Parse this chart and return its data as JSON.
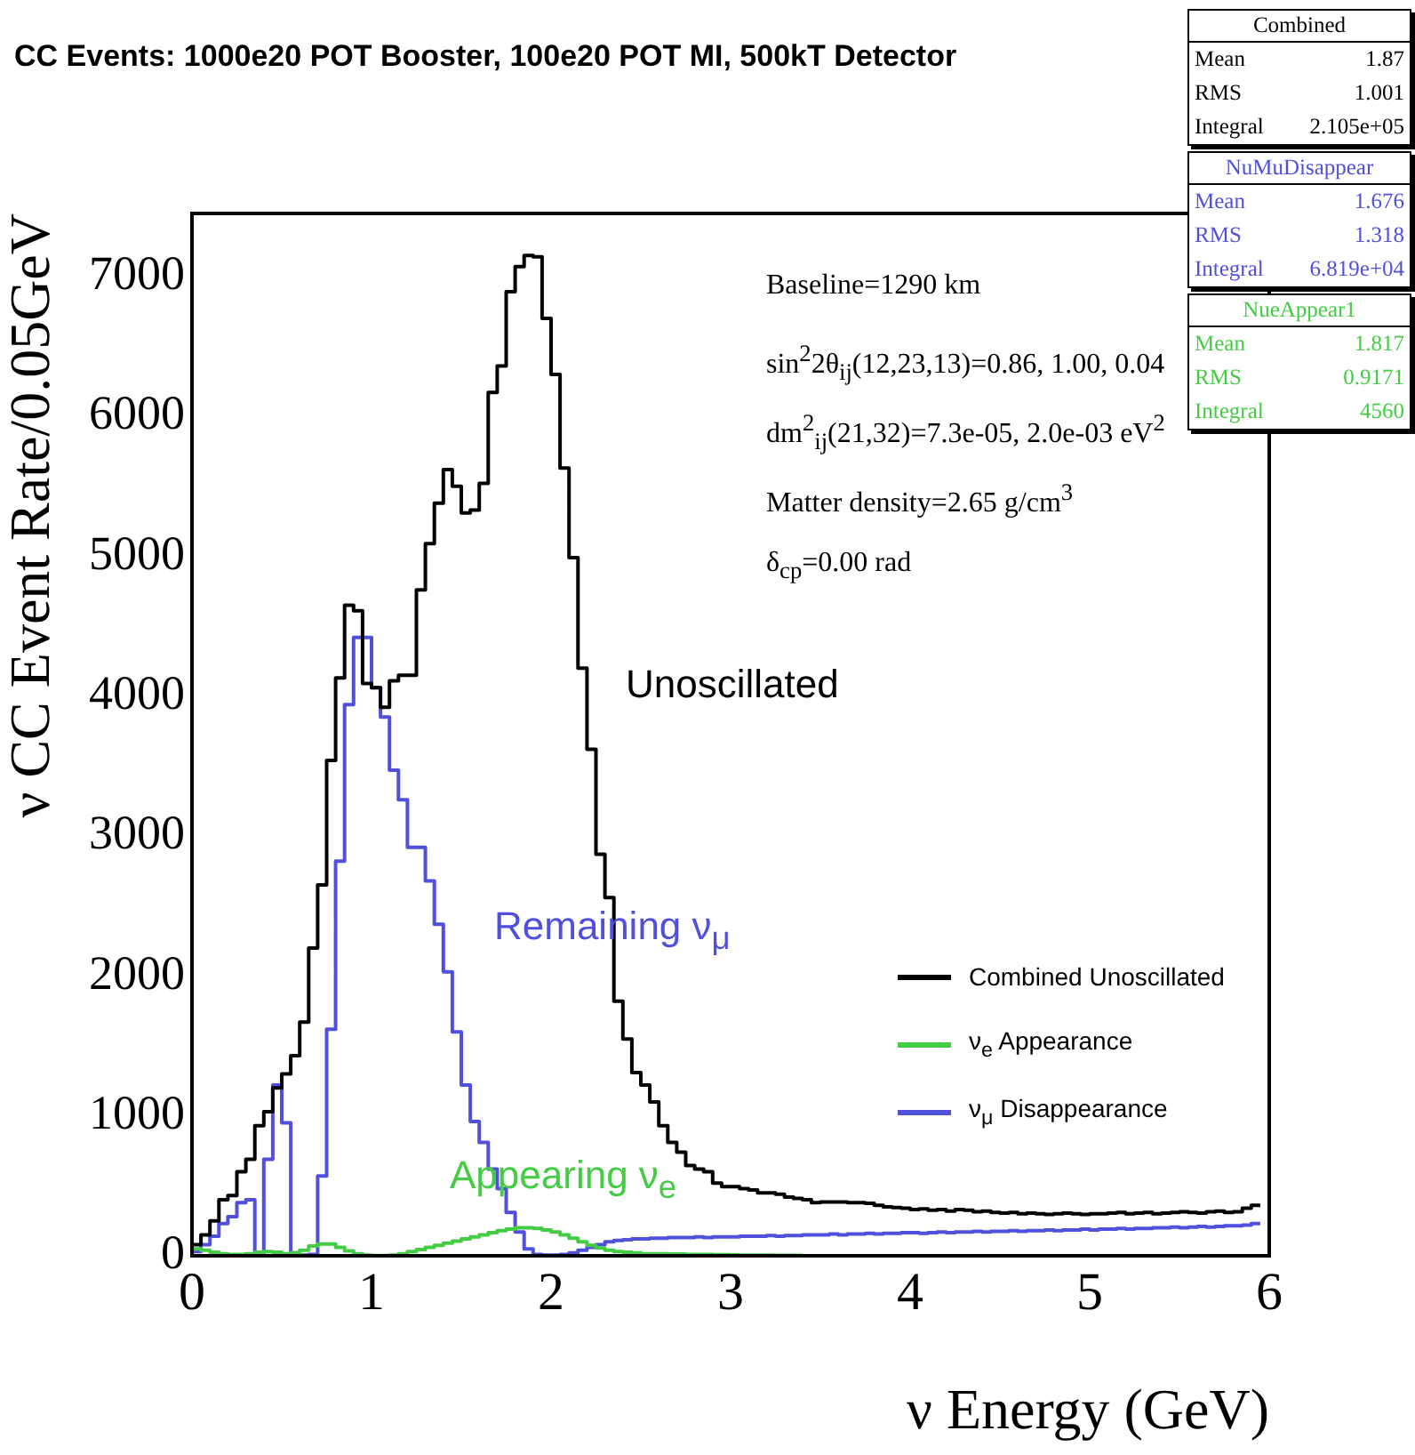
{
  "chart_data": {
    "type": "step",
    "title": "CC Events: 1000e20 POT Booster, 100e20 POT MI, 500kT Detector",
    "xlabel": "ν Energy (GeV)",
    "ylabel": "ν CC Event Rate/0.05GeV",
    "x": [
      0,
      0.05,
      0.1,
      0.15,
      0.2,
      0.25,
      0.3,
      0.35,
      0.4,
      0.45,
      0.5,
      0.55,
      0.6,
      0.65,
      0.7,
      0.75,
      0.8,
      0.85,
      0.9,
      0.95,
      1,
      1.05,
      1.1,
      1.15,
      1.2,
      1.25,
      1.3,
      1.35,
      1.4,
      1.45,
      1.5,
      1.55,
      1.6,
      1.65,
      1.7,
      1.75,
      1.8,
      1.85,
      1.9,
      1.95,
      2,
      2.05,
      2.1,
      2.15,
      2.2,
      2.25,
      2.3,
      2.35,
      2.4,
      2.45,
      2.5,
      2.55,
      2.6,
      2.65,
      2.7,
      2.75,
      2.8,
      2.85,
      2.9,
      2.95,
      3,
      3.05,
      3.1,
      3.15,
      3.2,
      3.25,
      3.3,
      3.35,
      3.4,
      3.45,
      3.5,
      3.55,
      3.6,
      3.65,
      3.7,
      3.75,
      3.8,
      3.85,
      3.9,
      3.95,
      4,
      4.05,
      4.1,
      4.15,
      4.2,
      4.25,
      4.3,
      4.35,
      4.4,
      4.45,
      4.5,
      4.55,
      4.6,
      4.65,
      4.7,
      4.75,
      4.8,
      4.85,
      4.9,
      4.95,
      5,
      5.05,
      5.1,
      5.15,
      5.2,
      5.25,
      5.3,
      5.35,
      5.4,
      5.45,
      5.5,
      5.55,
      5.6,
      5.65,
      5.7,
      5.75,
      5.8,
      5.85,
      5.9,
      5.95
    ],
    "series": [
      {
        "name": "Combined Unoscillated",
        "color": "#000000",
        "values": [
          30,
          80,
          150,
          250,
          400,
          430,
          600,
          690,
          930,
          1030,
          1200,
          1300,
          1430,
          1670,
          2200,
          2650,
          3540,
          4130,
          4650,
          4610,
          4090,
          4060,
          3920,
          4110,
          4150,
          4150,
          4760,
          5090,
          5380,
          5620,
          5500,
          5310,
          5330,
          5520,
          6170,
          6360,
          6890,
          7070,
          7150,
          7140,
          6700,
          6300,
          5630,
          4990,
          4200,
          3620,
          2870,
          2560,
          1820,
          1550,
          1310,
          1220,
          1100,
          930,
          810,
          740,
          645,
          620,
          600,
          520,
          495,
          495,
          480,
          470,
          450,
          450,
          440,
          420,
          410,
          400,
          380,
          385,
          385,
          385,
          380,
          380,
          375,
          360,
          350,
          345,
          340,
          330,
          335,
          325,
          330,
          320,
          330,
          325,
          315,
          320,
          310,
          305,
          310,
          300,
          305,
          300,
          295,
          300,
          305,
          300,
          295,
          300,
          300,
          305,
          310,
          300,
          305,
          310,
          300,
          305,
          310,
          315,
          310,
          305,
          315,
          320,
          310,
          315,
          340,
          360
        ]
      },
      {
        "name": "ν$_{e}$ Appearance",
        "color": "#44cc44",
        "values": [
          60,
          50,
          40,
          25,
          15,
          10,
          10,
          15,
          25,
          30,
          25,
          15,
          20,
          40,
          70,
          85,
          85,
          60,
          35,
          15,
          5,
          2,
          2,
          5,
          15,
          30,
          45,
          60,
          75,
          90,
          105,
          120,
          135,
          150,
          165,
          180,
          190,
          200,
          200,
          195,
          185,
          170,
          150,
          125,
          100,
          75,
          55,
          40,
          30,
          25,
          20,
          15,
          15,
          15,
          12,
          12,
          10,
          10,
          10,
          8,
          8,
          6,
          5,
          5,
          4,
          4,
          3,
          3,
          3,
          null,
          null,
          null,
          null,
          null,
          null,
          null,
          null,
          null,
          null,
          null,
          null,
          null,
          null,
          null,
          null,
          null,
          null,
          null,
          null,
          null,
          null,
          null,
          null,
          null,
          null,
          null,
          null,
          null,
          null,
          null,
          null,
          null,
          null,
          null,
          null,
          null,
          null,
          null,
          null,
          null,
          null,
          null,
          null,
          null,
          null,
          null,
          null,
          null,
          null,
          null
        ]
      },
      {
        "name": "ν$_{μ}$ Disappearance",
        "color": "#5050dd",
        "values": [
          10,
          30,
          80,
          140,
          230,
          280,
          380,
          400,
          10,
          690,
          1220,
          950,
          20,
          5,
          10,
          570,
          1620,
          2820,
          3940,
          4420,
          4420,
          4060,
          3850,
          3470,
          3260,
          2920,
          2920,
          2680,
          2370,
          2030,
          1600,
          1220,
          960,
          810,
          620,
          480,
          310,
          170,
          50,
          10,
          5,
          5,
          10,
          20,
          40,
          60,
          80,
          100,
          110,
          115,
          120,
          120,
          125,
          125,
          130,
          130,
          130,
          135,
          130,
          135,
          135,
          135,
          140,
          140,
          140,
          145,
          140,
          145,
          145,
          150,
          150,
          150,
          155,
          150,
          155,
          155,
          160,
          155,
          160,
          160,
          165,
          165,
          160,
          165,
          170,
          165,
          170,
          170,
          175,
          170,
          175,
          175,
          180,
          175,
          180,
          180,
          185,
          180,
          185,
          185,
          190,
          185,
          190,
          190,
          195,
          190,
          195,
          195,
          200,
          200,
          205,
          200,
          205,
          210,
          205,
          210,
          215,
          215,
          220,
          230
        ]
      }
    ],
    "xlim": [
      0,
      6
    ],
    "xticks": [
      0,
      1,
      2,
      3,
      4,
      5,
      6
    ],
    "ylim": [
      0,
      7450
    ],
    "yticks": [
      0,
      1000,
      2000,
      3000,
      4000,
      5000,
      6000,
      7000
    ],
    "legend": "right",
    "annotations": [
      "Combined",
      "Mean",
      "1.87",
      "RMS",
      "1.001",
      "Integral",
      "2.105e+05",
      "NuMuDisappear",
      "Mean",
      "1.676",
      "RMS",
      "1.318",
      "Integral",
      "6.819e+04",
      "NueAppear1",
      "Mean",
      "1.817",
      "RMS",
      "0.9171",
      "Integral",
      "4560",
      "Baseline=1290 km",
      "sin$^{2}$2θ$_{ij}$(12,23,13)=0.86, 1.00, 0.04",
      "dm$^{2}$$_{ij}$(21,32)=7.3e-05, 2.0e-03 eV$^{2}$",
      "Matter density=2.65 g/cm$^{3}$",
      "δ$_{cp}$=0.00 rad",
      "Unoscillated",
      "Remaining ν$_{μ}$",
      "Appearing ν$_{e}$"
    ]
  }
}
